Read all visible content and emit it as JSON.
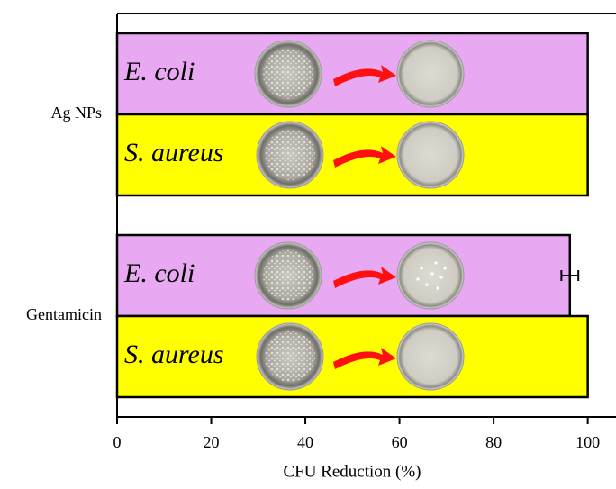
{
  "chart_data": {
    "type": "hbar",
    "categories": [
      "Ag NPs",
      "Gentamicin"
    ],
    "series": [
      {
        "name": "E. coli",
        "color": "#e9a8f2",
        "values": [
          100,
          96.2
        ],
        "errors": [
          null,
          1.8
        ]
      },
      {
        "name": "S. aureus",
        "color": "#ffff00",
        "values": [
          100,
          100
        ],
        "errors": [
          null,
          null
        ]
      }
    ],
    "xlabel": "CFU Reduction (%)",
    "xlim": [
      0,
      106
    ],
    "xticks": [
      0,
      20,
      40,
      60,
      80,
      100
    ]
  }
}
